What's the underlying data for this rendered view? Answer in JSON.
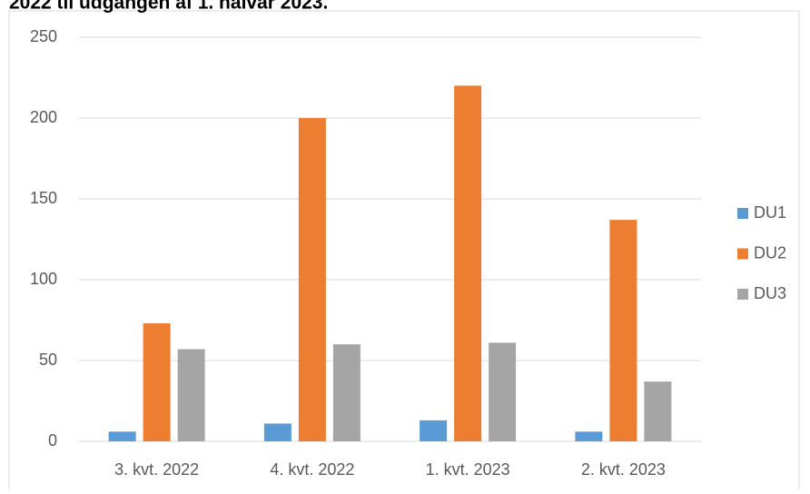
{
  "chart_data": {
    "type": "bar",
    "title": "2022 til udgangen af 1. halvår 2023.",
    "categories": [
      "3. kvt. 2022",
      "4. kvt. 2022",
      "1. kvt. 2023",
      "2. kvt. 2023"
    ],
    "series": [
      {
        "name": "DU1",
        "color": "#5b9bd5",
        "values": [
          6,
          11,
          13,
          6
        ]
      },
      {
        "name": "DU2",
        "color": "#ed7d31",
        "values": [
          73,
          200,
          220,
          137
        ]
      },
      {
        "name": "DU3",
        "color": "#a5a5a5",
        "values": [
          57,
          60,
          61,
          37
        ]
      }
    ],
    "ylim": [
      0,
      250
    ],
    "yticks": [
      0,
      50,
      100,
      150,
      200,
      250
    ],
    "grid": true,
    "legend": "right"
  }
}
